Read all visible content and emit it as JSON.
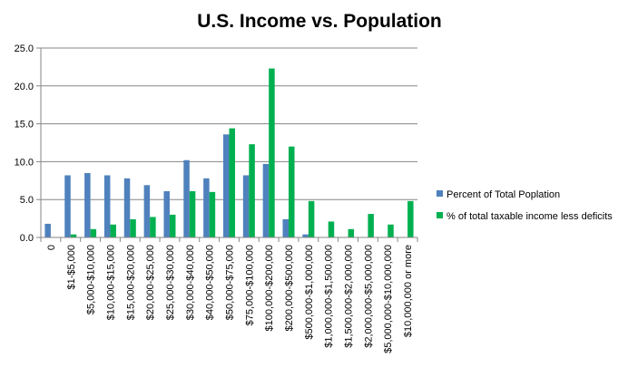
{
  "chart_data": {
    "type": "bar",
    "title": "U.S. Income vs. Population",
    "xlabel": "",
    "ylabel": "",
    "ylim": [
      0,
      25
    ],
    "yticks": [
      "0.0",
      "5.0",
      "10.0",
      "15.0",
      "20.0",
      "25.0"
    ],
    "grid": true,
    "legend_position": "right",
    "categories": [
      "0",
      "$1-$5,000",
      "$5,000-$10,000",
      "$10,000-$15,000",
      "$15,000-$20,000",
      "$20,000-$25,000",
      "$25,000-$30,000",
      "$30,000-$40,000",
      "$40,000-$50,000",
      "$50,000-$75,000",
      "$75,000-$100,000",
      "$100,000-$200,000",
      "$200,000-$500,000",
      "$500,000-$1,000,000",
      "$1,000,000-$1,500,000",
      "$1,500,000-$2,000,000",
      "$2,000,000-$5,000,000",
      "$5,000,000-$10,000,000",
      "$10,000,000 or more"
    ],
    "series": [
      {
        "name": "Percent of Total Poplation",
        "color": "#4f81bd",
        "values": [
          1.8,
          8.2,
          8.5,
          8.2,
          7.8,
          6.9,
          6.1,
          10.2,
          7.8,
          13.6,
          8.2,
          9.7,
          2.4,
          0.4,
          0,
          0,
          0,
          0,
          0
        ]
      },
      {
        "name": "% of total taxable income less deficits",
        "color": "#00b050",
        "values": [
          0,
          0.4,
          1.1,
          1.7,
          2.4,
          2.7,
          3.0,
          6.1,
          6.0,
          14.4,
          12.3,
          22.3,
          12.0,
          4.8,
          2.1,
          1.1,
          3.1,
          1.7,
          4.8
        ]
      }
    ]
  }
}
